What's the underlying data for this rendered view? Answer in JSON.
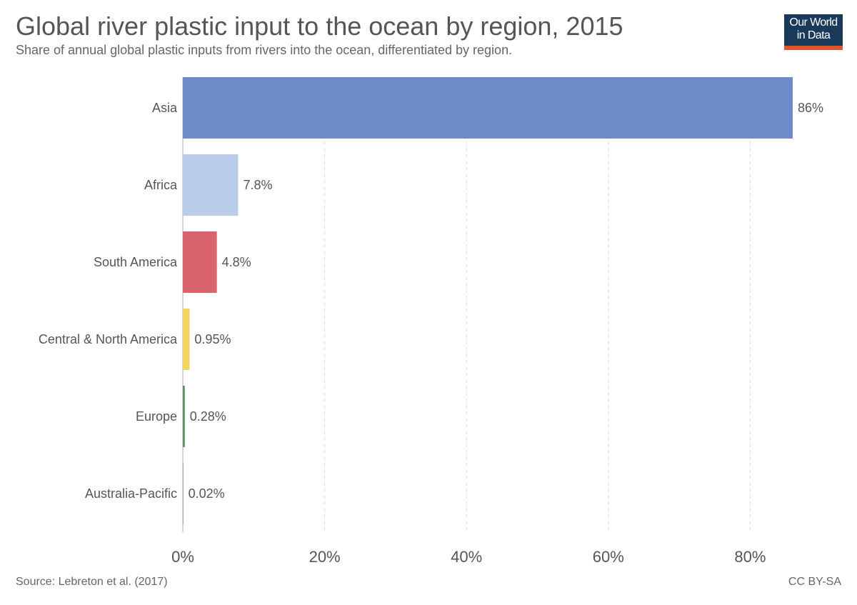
{
  "header": {
    "title": "Global river plastic input to the ocean by region, 2015",
    "subtitle": "Share of annual global plastic inputs from rivers into the ocean, differentiated by region."
  },
  "logo": {
    "line1": "Our World",
    "line2": "in Data"
  },
  "footer": {
    "source": "Source: Lebreton et al. (2017)",
    "license": "CC BY-SA"
  },
  "chart_data": {
    "type": "bar",
    "orientation": "horizontal",
    "title": "Global river plastic input to the ocean by region, 2015",
    "subtitle": "Share of annual global plastic inputs from rivers into the ocean, differentiated by region.",
    "categories": [
      "Asia",
      "Africa",
      "South America",
      "Central & North America",
      "Europe",
      "Australia-Pacific"
    ],
    "values": [
      86,
      7.8,
      4.8,
      0.95,
      0.28,
      0.02
    ],
    "value_labels": [
      "86%",
      "7.8%",
      "4.8%",
      "0.95%",
      "0.28%",
      "0.02%"
    ],
    "colors": [
      "#6d8ac9",
      "#b9cdeb",
      "#d9646f",
      "#f4d35e",
      "#5d9162",
      "#7a7a7a"
    ],
    "xlim": [
      0,
      90
    ],
    "xticks": [
      0,
      20,
      40,
      60,
      80
    ],
    "xtick_labels": [
      "0%",
      "20%",
      "40%",
      "60%",
      "80%"
    ],
    "grid": "vertical dashed",
    "legend": "none"
  }
}
